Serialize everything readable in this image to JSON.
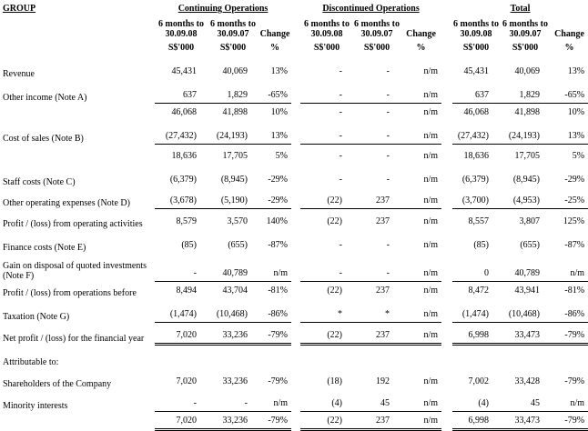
{
  "page_title": "GROUP",
  "table": {
    "groups": [
      {
        "title": "Continuing Operations"
      },
      {
        "title": "Discontinued Operations"
      },
      {
        "title": "Total"
      }
    ],
    "subcolumns": [
      {
        "line1": "6 months to",
        "line2": "30.09.08",
        "unit": "S$'000"
      },
      {
        "line1": "Change",
        "line2": "30.09.07",
        "unit": "S$'000",
        "is_period": true
      },
      {
        "line1": "Change",
        "line2": "",
        "unit": "%"
      }
    ],
    "period_header_1": [
      "6 months to",
      "30.09.08"
    ],
    "period_header_2": [
      "6 months to",
      "30.09.07"
    ],
    "change_header": "Change",
    "unit_value": "S$'000",
    "unit_percent": "%",
    "rows": [
      {
        "label": "Revenue",
        "values": [
          "45,431",
          "40,069",
          "13%",
          "-",
          "-",
          "n/m",
          "45,431",
          "40,069",
          "13%"
        ]
      },
      {
        "label": "Other income (Note A)",
        "values": [
          "637",
          "1,829",
          "-65%",
          "-",
          "-",
          "n/m",
          "637",
          "1,829",
          "-65%"
        ]
      },
      {
        "label": "",
        "values": [
          "46,068",
          "41,898",
          "10%",
          "-",
          "-",
          "n/m",
          "46,068",
          "41,898",
          "10%"
        ],
        "rule_above": true
      },
      {
        "label": "Cost of sales (Note B)",
        "values": [
          "(27,432)",
          "(24,193)",
          "13%",
          "-",
          "-",
          "n/m",
          "(27,432)",
          "(24,193)",
          "13%"
        ]
      },
      {
        "label": "",
        "values": [
          "18,636",
          "17,705",
          "5%",
          "-",
          "-",
          "n/m",
          "18,636",
          "17,705",
          "5%"
        ],
        "rule_above": true
      },
      {
        "label": "Staff costs (Note C)",
        "values": [
          "(6,379)",
          "(8,945)",
          "-29%",
          "-",
          "-",
          "n/m",
          "(6,379)",
          "(8,945)",
          "-29%"
        ]
      },
      {
        "label": "Other operating expenses (Note D)",
        "values": [
          "(3,678)",
          "(5,190)",
          "-29%",
          "(22)",
          "237",
          "n/m",
          "(3,700)",
          "(4,953)",
          "-25%"
        ]
      },
      {
        "label": "Profit / (loss) from operating activities",
        "values": [
          "8,579",
          "3,570",
          "140%",
          "(22)",
          "237",
          "n/m",
          "8,557",
          "3,807",
          "125%"
        ],
        "rule_above": true
      },
      {
        "label": "Finance costs (Note E)",
        "values": [
          "(85)",
          "(655)",
          "-87%",
          "-",
          "-",
          "n/m",
          "(85)",
          "(655)",
          "-87%"
        ]
      },
      {
        "label": "Gain on disposal of quoted investments",
        "label2": "(Note F)",
        "values": [
          "-",
          "40,789",
          "n/m",
          "-",
          "-",
          "n/m",
          "0",
          "40,789",
          "n/m"
        ]
      },
      {
        "label": "Profit / (loss) from operations before",
        "values": [
          "8,494",
          "43,704",
          "-81%",
          "(22)",
          "237",
          "n/m",
          "8,472",
          "43,941",
          "-81%"
        ],
        "rule_above": true
      },
      {
        "label": "Taxation (Note G)",
        "values": [
          "(1,474)",
          "(10,468)",
          "-86%",
          "*",
          "*",
          "n/m",
          "(1,474)",
          "(10,468)",
          "-86%"
        ]
      },
      {
        "label": "Net profit / (loss) for the financial year",
        "values": [
          "7,020",
          "33,236",
          "-79%",
          "(22)",
          "237",
          "n/m",
          "6,998",
          "33,473",
          "-79%"
        ],
        "rule_above": true,
        "rule_below": "double"
      },
      {
        "label": "Attributable to:",
        "values": [
          "",
          "",
          "",
          "",
          "",
          "",
          "",
          "",
          ""
        ]
      },
      {
        "label": "Shareholders of the Company",
        "values": [
          "7,020",
          "33,236",
          "-79%",
          "(18)",
          "192",
          "n/m",
          "7,002",
          "33,428",
          "-79%"
        ]
      },
      {
        "label": "Minority interests",
        "values": [
          "-",
          "-",
          "n/m",
          "(4)",
          "45",
          "n/m",
          "(4)",
          "45",
          "n/m"
        ]
      },
      {
        "label": "",
        "values": [
          "7,020",
          "33,236",
          "-79%",
          "(22)",
          "237",
          "n/m",
          "6,998",
          "33,473",
          "-79%"
        ],
        "rule_above": true,
        "rule_below": "double"
      }
    ]
  }
}
